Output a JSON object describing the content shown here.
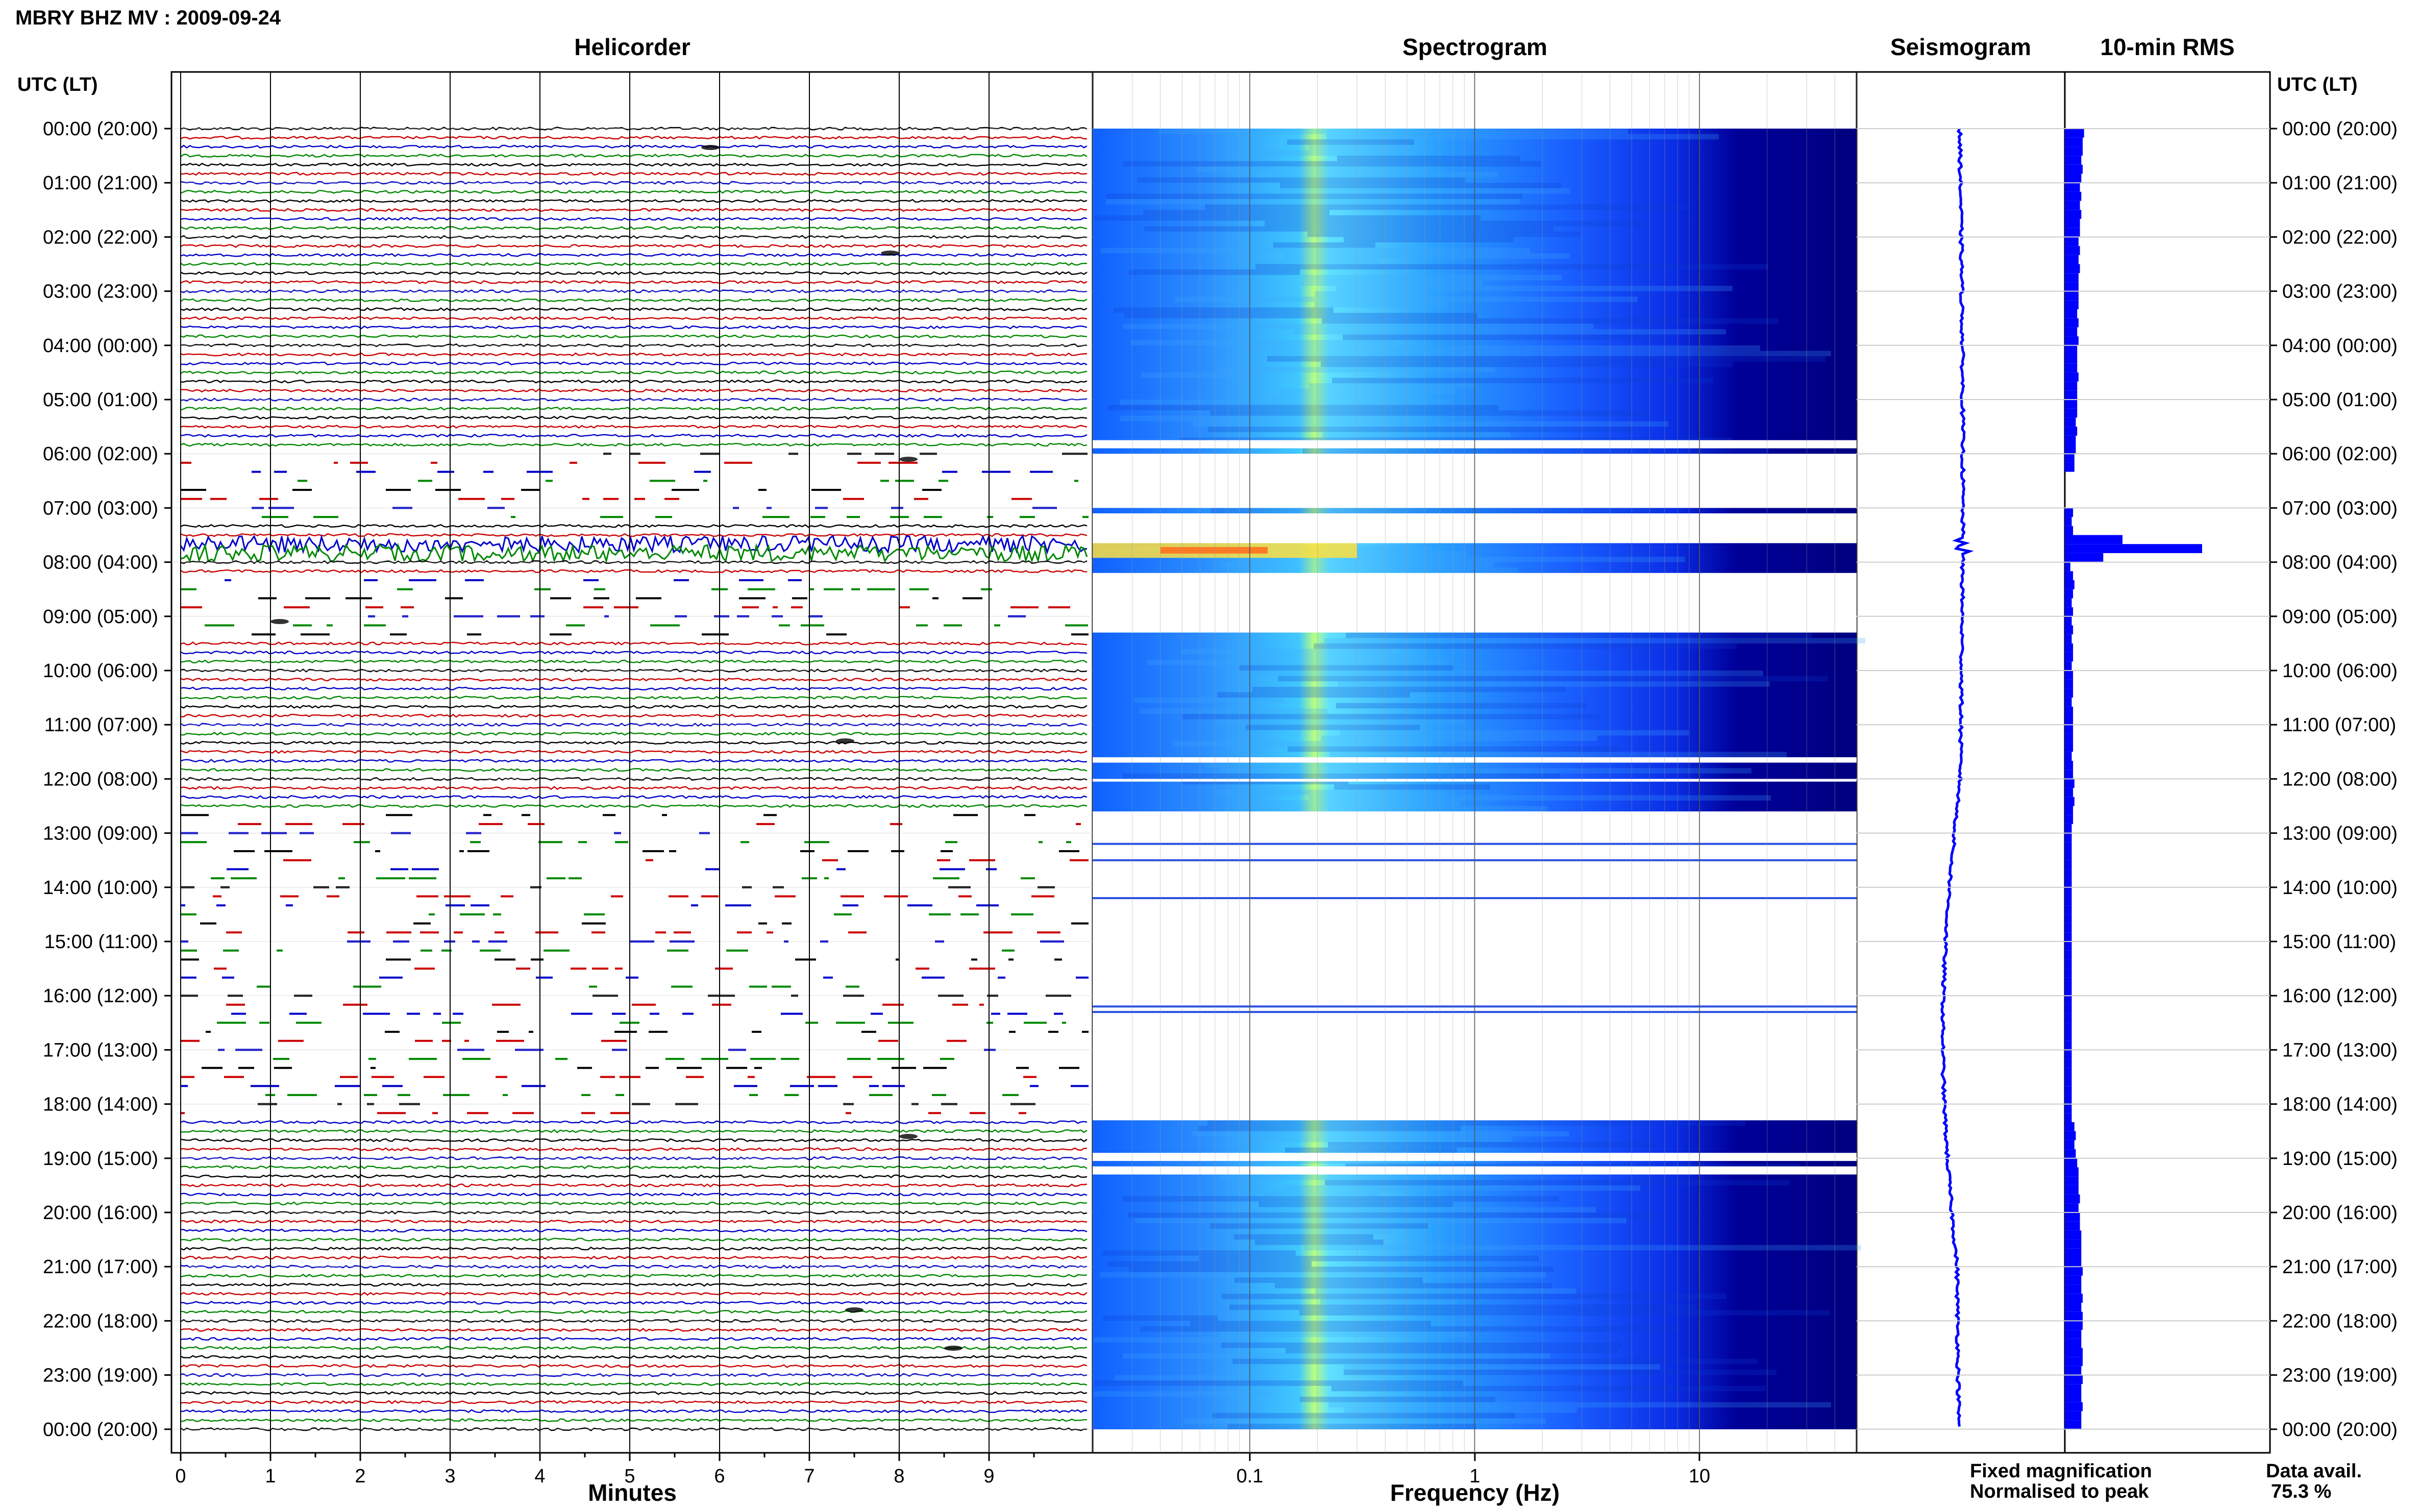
{
  "header": {
    "title": "MBRY BHZ MV : 2009-09-24",
    "left_axis_label": "UTC (LT)",
    "right_axis_label": "UTC (LT)"
  },
  "panels": {
    "helicorder": "Helicorder",
    "spectrogram": "Spectrogram",
    "seismogram": "Seismogram",
    "rms": "10-min RMS"
  },
  "legend": {
    "fixed_magnification": "Fixed magnification",
    "normalised_to_peak": "Normalised to peak",
    "fixed_color": "#0000ff",
    "normalised_color": "#ff0000"
  },
  "footer": {
    "data_avail_label": "Data avail.",
    "data_avail_value": "75.3 %"
  },
  "colors": {
    "trace_cycle": [
      "#000000",
      "#cc0000",
      "#0000cc",
      "#008800"
    ],
    "spectrogram_background": "#00007f",
    "rms_fill": "#0000ff"
  },
  "chart_data": [
    {
      "type": "line",
      "name": "helicorder",
      "title": "Helicorder",
      "xlabel": "Minutes",
      "x_ticks": [
        "0",
        "1",
        "2",
        "3",
        "4",
        "5",
        "6",
        "7",
        "8",
        "9"
      ],
      "xlim": [
        0,
        10
      ],
      "y_ticks": [
        "00:00 (20:00)",
        "01:00 (21:00)",
        "02:00 (22:00)",
        "03:00 (23:00)",
        "04:00 (00:00)",
        "05:00 (01:00)",
        "06:00 (02:00)",
        "07:00 (03:00)",
        "08:00 (04:00)",
        "09:00 (05:00)",
        "10:00 (06:00)",
        "11:00 (07:00)",
        "12:00 (08:00)",
        "13:00 (09:00)",
        "14:00 (10:00)",
        "15:00 (11:00)",
        "16:00 (12:00)",
        "17:00 (13:00)",
        "18:00 (14:00)",
        "19:00 (15:00)",
        "20:00 (16:00)",
        "21:00 (17:00)",
        "22:00 (18:00)",
        "23:00 (19:00)",
        "00:00 (20:00)"
      ],
      "trace_minutes": 10,
      "traces_per_hour": 6,
      "data_gaps_utc_hours": [
        [
          5.9,
          7.2
        ],
        [
          8.3,
          9.5
        ],
        [
          12.6,
          18.3
        ]
      ],
      "event_utc_hours": [
        7.55,
        7.9
      ],
      "grid": true
    },
    {
      "type": "heatmap",
      "name": "spectrogram",
      "title": "Spectrogram",
      "xlabel": "Frequency (Hz)",
      "x_scale": "log",
      "xlim": [
        0.02,
        50
      ],
      "x_ticks": [
        "0.1",
        "1",
        "10"
      ],
      "peak_frequency_band_hz": [
        0.2,
        0.3
      ],
      "no_data_utc_hours": [
        [
          5.75,
          5.9
        ],
        [
          6.0,
          7.0
        ],
        [
          7.1,
          7.65
        ],
        [
          8.2,
          9.3
        ],
        [
          11.6,
          11.7
        ],
        [
          12.0,
          12.05
        ],
        [
          12.6,
          18.3
        ],
        [
          18.9,
          19.05
        ],
        [
          19.15,
          19.3
        ]
      ]
    },
    {
      "type": "line",
      "name": "seismogram",
      "title": "Seismogram",
      "event_utc_hours": [
        7.55,
        7.9
      ]
    },
    {
      "type": "bar",
      "name": "rms",
      "title": "10-min RMS",
      "orientation": "horizontal",
      "bin_minutes": 10,
      "relative_values": [
        0.14,
        0.13,
        0.13,
        0.12,
        0.13,
        0.12,
        0.11,
        0.12,
        0.11,
        0.12,
        0.11,
        0.11,
        0.1,
        0.11,
        0.1,
        0.11,
        0.1,
        0.1,
        0.1,
        0.1,
        0.09,
        0.1,
        0.09,
        0.1,
        0.09,
        0.09,
        0.09,
        0.1,
        0.09,
        0.09,
        0.09,
        0.09,
        0.08,
        0.09,
        0.08,
        0.08,
        0.07,
        0.07,
        0,
        0,
        0,
        0,
        0.06,
        0.05,
        0.06,
        0.42,
        1.0,
        0.28,
        0.04,
        0.06,
        0.07,
        0.06,
        0.05,
        0.06,
        0.05,
        0.06,
        0.05,
        0.06,
        0.06,
        0.05,
        0.06,
        0.06,
        0.06,
        0.05,
        0.06,
        0.06,
        0.06,
        0.06,
        0.06,
        0.05,
        0.06,
        0.06,
        0.07,
        0.06,
        0.07,
        0.06,
        0.06,
        0.05,
        0.05,
        0.05,
        0.05,
        0.05,
        0.05,
        0.05,
        0.05,
        0.05,
        0.05,
        0.05,
        0.05,
        0.05,
        0.05,
        0.05,
        0.05,
        0.05,
        0.05,
        0.05,
        0.05,
        0.05,
        0.05,
        0.05,
        0.05,
        0.05,
        0.05,
        0.05,
        0.05,
        0.05,
        0.05,
        0.05,
        0.05,
        0.05,
        0.07,
        0.08,
        0.07,
        0.08,
        0.09,
        0.1,
        0.1,
        0.1,
        0.11,
        0.1,
        0.11,
        0.11,
        0.12,
        0.12,
        0.12,
        0.12,
        0.13,
        0.12,
        0.12,
        0.13,
        0.12,
        0.13,
        0.13,
        0.12,
        0.12,
        0.13,
        0.13,
        0.12,
        0.13,
        0.12,
        0.12,
        0.13,
        0.12,
        0.12
      ]
    }
  ]
}
